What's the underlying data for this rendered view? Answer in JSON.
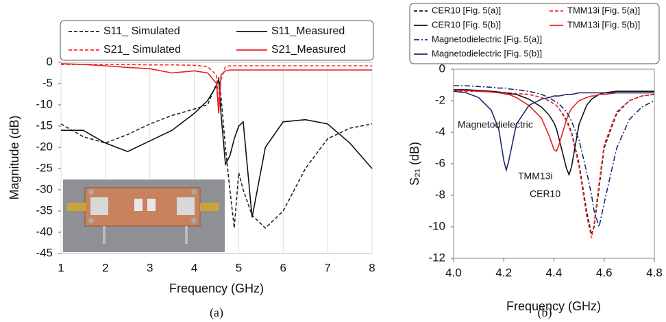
{
  "chart_data": [
    {
      "type": "line",
      "x_label": "Frequency (GHz)",
      "y_label": "Magnitude (dB)",
      "caption": "(a)",
      "xlim": [
        1,
        8
      ],
      "xticks": [
        1,
        2,
        3,
        4,
        5,
        6,
        7,
        8
      ],
      "ylim": [
        -45,
        0
      ],
      "yticks": [
        0,
        -5,
        -10,
        -15,
        -20,
        -25,
        -30,
        -35,
        -40,
        -45
      ],
      "grid": "x",
      "x": [
        1,
        1.5,
        2,
        2.5,
        3,
        3.5,
        4,
        4.3,
        4.5,
        4.55,
        4.6,
        4.7,
        4.8,
        4.9,
        5,
        5.1,
        5.3,
        5.6,
        6,
        6.5,
        7,
        7.5,
        8
      ],
      "series": [
        {
          "name": "S11_ Simulated",
          "color": "#222222",
          "style": "dashed",
          "values": [
            -14.5,
            -17.5,
            -19,
            -17,
            -14.5,
            -12.5,
            -11,
            -10,
            -5,
            -3.5,
            -8,
            -20,
            -30,
            -39,
            -26,
            -30,
            -36,
            -39,
            -35,
            -25,
            -18,
            -15.5,
            -14.5
          ]
        },
        {
          "name": "S11_Measured",
          "color": "#111111",
          "style": "solid",
          "values": [
            -16,
            -16,
            -19,
            -21,
            -18.5,
            -16,
            -12,
            -9,
            -5.5,
            -4,
            -12,
            -24,
            -22,
            -18,
            -15,
            -14,
            -36.5,
            -20,
            -14,
            -13.5,
            -14.5,
            -19,
            -25
          ]
        },
        {
          "name": "S21_ Simulated",
          "color": "#ff2a2a",
          "style": "dashed",
          "values": [
            -0.5,
            -0.5,
            -0.5,
            -0.5,
            -0.6,
            -0.6,
            -0.7,
            -1,
            -3,
            -10,
            -4,
            -1,
            -0.8,
            -0.8,
            -0.8,
            -0.8,
            -0.8,
            -0.8,
            -0.8,
            -0.8,
            -0.8,
            -0.8,
            -0.8
          ]
        },
        {
          "name": "S21_Measured",
          "color": "#e81e1e",
          "style": "solid",
          "values": [
            -0.3,
            -0.5,
            -0.8,
            -1.2,
            -1.5,
            -2.5,
            -2,
            -2.5,
            -5,
            -12,
            -3,
            -2,
            -1.8,
            -1.8,
            -1.8,
            -1.8,
            -1.8,
            -1.8,
            -1.8,
            -1.8,
            -1.8,
            -1.8,
            -1.8
          ]
        }
      ]
    },
    {
      "type": "line",
      "x_label": "Frequency (GHz)",
      "y_label": "S₂₁ (dB)",
      "caption": "(b)",
      "xlim": [
        4,
        4.8
      ],
      "xticks": [
        {
          "value": 4,
          "label": "4.0"
        },
        4.2,
        4.4,
        4.6,
        4.8
      ],
      "ylim": [
        -12,
        0
      ],
      "yticks": [
        0,
        -2,
        -4,
        -6,
        -8,
        -10,
        -12
      ],
      "grid": false,
      "annotations": [
        "Magnetodielectric",
        "TMM13i",
        "CER10"
      ],
      "x": [
        4.0,
        4.05,
        4.1,
        4.15,
        4.18,
        4.2,
        4.21,
        4.22,
        4.25,
        4.3,
        4.35,
        4.38,
        4.4,
        4.41,
        4.42,
        4.45,
        4.46,
        4.47,
        4.5,
        4.53,
        4.55,
        4.56,
        4.58,
        4.6,
        4.65,
        4.7,
        4.75,
        4.8
      ],
      "series": [
        {
          "name": "CER10 [Fig. 5(a)]",
          "color": "#111111",
          "style": "dashed",
          "values": [
            -1.4,
            -1.4,
            -1.4,
            -1.45,
            -1.45,
            -1.5,
            -1.5,
            -1.5,
            -1.55,
            -1.6,
            -1.8,
            -2,
            -2.2,
            -2.3,
            -2.5,
            -3.2,
            -3.6,
            -4,
            -6,
            -9,
            -10.5,
            -10,
            -7.5,
            -5,
            -2.8,
            -2,
            -1.7,
            -1.6
          ]
        },
        {
          "name": "TMM13i [Fig. 5(a)]",
          "color": "#ff2a2a",
          "style": "dashed",
          "values": [
            -1.4,
            -1.4,
            -1.4,
            -1.45,
            -1.45,
            -1.5,
            -1.5,
            -1.5,
            -1.55,
            -1.6,
            -1.8,
            -2,
            -2.2,
            -2.3,
            -2.5,
            -3.3,
            -3.7,
            -4.1,
            -6.2,
            -9.3,
            -10.7,
            -9.8,
            -7.2,
            -4.8,
            -2.7,
            -2,
            -1.7,
            -1.6
          ]
        },
        {
          "name": "CER10 [Fig. 5(b)]",
          "color": "#111111",
          "style": "solid",
          "values": [
            -1.3,
            -1.3,
            -1.35,
            -1.4,
            -1.45,
            -1.5,
            -1.5,
            -1.55,
            -1.6,
            -1.9,
            -2.4,
            -2.9,
            -3.4,
            -3.8,
            -4.4,
            -6.3,
            -6.7,
            -6.2,
            -3.5,
            -2.3,
            -1.9,
            -1.8,
            -1.6,
            -1.5,
            -1.4,
            -1.4,
            -1.4,
            -1.4
          ]
        },
        {
          "name": "TMM13i [Fig. 5(b)]",
          "color": "#e81e1e",
          "style": "solid",
          "values": [
            -1.35,
            -1.35,
            -1.4,
            -1.45,
            -1.5,
            -1.55,
            -1.6,
            -1.6,
            -1.8,
            -2.3,
            -3.1,
            -4.2,
            -5.1,
            -5.2,
            -4.8,
            -3.2,
            -2.8,
            -2.5,
            -2,
            -1.8,
            -1.7,
            -1.7,
            -1.6,
            -1.6,
            -1.5,
            -1.5,
            -1.5,
            -1.5
          ]
        },
        {
          "name": "Magnetodielectric [Fig. 5(a)]",
          "color": "#1a2a6c",
          "style": "dashdot",
          "values": [
            -1.05,
            -1.05,
            -1.1,
            -1.15,
            -1.2,
            -1.2,
            -1.2,
            -1.25,
            -1.3,
            -1.4,
            -1.6,
            -1.8,
            -2,
            -2.1,
            -2.2,
            -2.7,
            -3,
            -3.3,
            -4.5,
            -6.5,
            -8,
            -9,
            -10,
            -8.5,
            -5,
            -3.2,
            -2.4,
            -2
          ]
        },
        {
          "name": "Magnetodielectric [Fig. 5(b)]",
          "color": "#1a2a6c",
          "style": "solid",
          "values": [
            -1.4,
            -1.5,
            -1.8,
            -2.6,
            -3.8,
            -5.8,
            -6.4,
            -5.8,
            -3.5,
            -2.3,
            -1.9,
            -1.8,
            -1.7,
            -1.7,
            -1.7,
            -1.6,
            -1.6,
            -1.6,
            -1.5,
            -1.5,
            -1.5,
            -1.5,
            -1.5,
            -1.5,
            -1.5,
            -1.5,
            -1.5,
            -1.5
          ]
        }
      ]
    }
  ]
}
